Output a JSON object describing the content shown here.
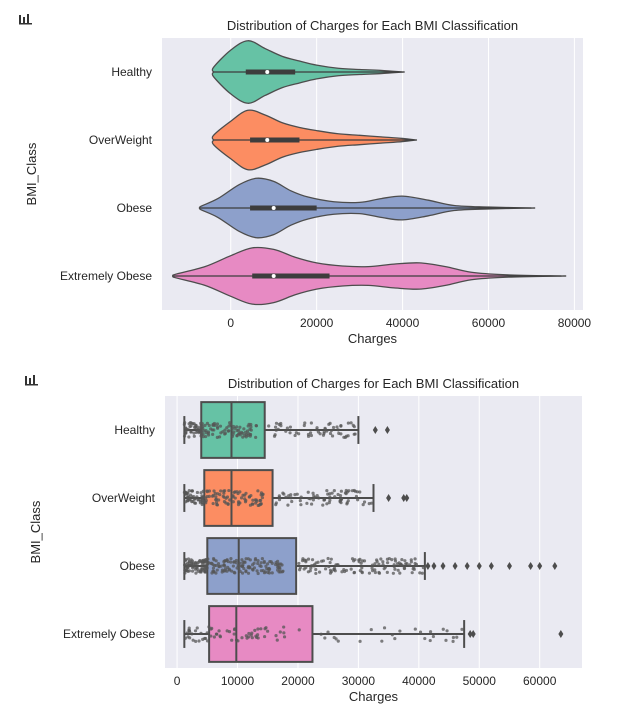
{
  "chart_data": [
    {
      "type": "violin",
      "title": "Distribution of Charges for Each BMI Classification",
      "xlabel": "Charges",
      "ylabel": "BMI_Class",
      "xlim": [
        -16000,
        82000
      ],
      "xticks": [
        0,
        20000,
        40000,
        60000,
        80000
      ],
      "grid": true,
      "orientation": "horizontal",
      "categories": [
        "Healthy",
        "OverWeight",
        "Obese",
        "Extremely Obese"
      ],
      "colors": [
        "#66c2a5",
        "#fc8d62",
        "#8da0cb",
        "#e78ac3"
      ],
      "series": [
        {
          "min": -4000,
          "q1": 3500,
          "median": 8500,
          "q3": 15000,
          "max": 40000,
          "kde_x": [
            -4000,
            0,
            4000,
            8000,
            12000,
            16000,
            20000,
            25000,
            30000,
            35000,
            40000
          ],
          "kde_w": [
            0.15,
            0.7,
            1.0,
            0.75,
            0.5,
            0.35,
            0.22,
            0.12,
            0.08,
            0.05,
            0.0
          ]
        },
        {
          "min": -4000,
          "q1": 4500,
          "median": 8500,
          "q3": 16000,
          "max": 43000,
          "kde_x": [
            -4000,
            0,
            4000,
            8000,
            12000,
            16000,
            20000,
            25000,
            30000,
            35000,
            40000,
            43000
          ],
          "kde_w": [
            0.15,
            0.6,
            0.95,
            0.8,
            0.55,
            0.4,
            0.3,
            0.2,
            0.15,
            0.1,
            0.05,
            0.0
          ]
        },
        {
          "min": -7000,
          "q1": 4500,
          "median": 10000,
          "q3": 20000,
          "max": 70000,
          "kde_x": [
            -7000,
            -3000,
            2000,
            6000,
            10000,
            14000,
            18000,
            24000,
            30000,
            35000,
            40000,
            46000,
            52000,
            60000,
            70000
          ],
          "kde_w": [
            0.05,
            0.3,
            0.75,
            0.95,
            0.85,
            0.55,
            0.35,
            0.2,
            0.18,
            0.3,
            0.38,
            0.25,
            0.08,
            0.03,
            0.0
          ]
        },
        {
          "min": -13000,
          "q1": 5000,
          "median": 10000,
          "q3": 23000,
          "max": 77000,
          "kde_x": [
            -13000,
            -6000,
            0,
            5000,
            10000,
            15000,
            20000,
            26000,
            32000,
            38000,
            44000,
            50000,
            56000,
            64000,
            77000
          ],
          "kde_w": [
            0.05,
            0.3,
            0.65,
            0.9,
            0.85,
            0.6,
            0.42,
            0.32,
            0.3,
            0.38,
            0.42,
            0.3,
            0.12,
            0.04,
            0.0
          ]
        }
      ]
    },
    {
      "type": "box",
      "title": "Distribution of Charges for Each BMI Classification",
      "xlabel": "Charges",
      "ylabel": "BMI_Class",
      "xlim": [
        -2000,
        67000
      ],
      "xticks": [
        0,
        10000,
        20000,
        30000,
        40000,
        50000,
        60000
      ],
      "grid": true,
      "orientation": "horizontal",
      "categories": [
        "Healthy",
        "OverWeight",
        "Obese",
        "Extremely Obese"
      ],
      "colors": [
        "#66c2a5",
        "#fc8d62",
        "#8da0cb",
        "#e78ac3"
      ],
      "series": [
        {
          "whislo": 1200,
          "q1": 4000,
          "median": 9000,
          "q3": 14500,
          "whishi": 30000,
          "fliers": [
            32800,
            34800
          ]
        },
        {
          "whislo": 1200,
          "q1": 4500,
          "median": 9000,
          "q3": 15800,
          "whishi": 32500,
          "fliers": [
            35000,
            37500,
            38000
          ]
        },
        {
          "whislo": 1200,
          "q1": 5000,
          "median": 10200,
          "q3": 19700,
          "whishi": 41000,
          "fliers": [
            41500,
            42500,
            44000,
            46000,
            48000,
            50000,
            52000,
            55000,
            58500,
            60000,
            62500
          ]
        },
        {
          "whislo": 1200,
          "q1": 5300,
          "median": 9800,
          "q3": 22400,
          "whishi": 47500,
          "fliers": [
            48500,
            49000,
            63500
          ]
        }
      ]
    }
  ]
}
